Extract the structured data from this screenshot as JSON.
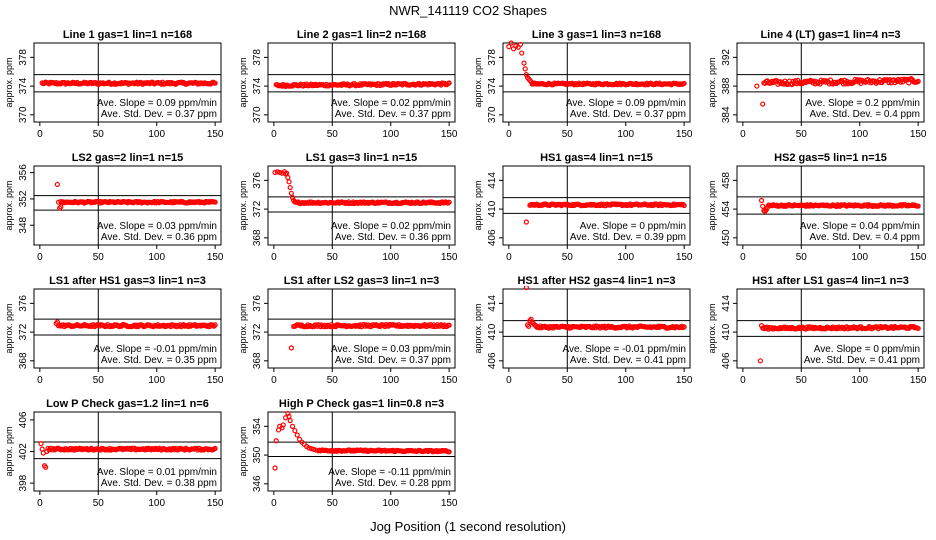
{
  "figure": {
    "title": "NWR_141119  CO2 Shapes",
    "xlabel": "Jog Position (1 second resolution)",
    "ylabel": "approx. ppm",
    "annotation_slope_prefix": "Ave. Slope = ",
    "annotation_slope_unit": " ppm/min",
    "annotation_std_prefix": "Ave. Std. Dev. = ",
    "annotation_std_unit": " ppm",
    "point_color": "#ff0000",
    "line_color": "#000000"
  },
  "chart_data": [
    {
      "type": "scatter",
      "title": "Line 1 gas=1 lin=1 n=168",
      "xlim": [
        -5,
        155
      ],
      "xticks": [
        0,
        50,
        100,
        150
      ],
      "ylim": [
        369,
        380
      ],
      "yticks": [
        370,
        374,
        378
      ],
      "hlines": [
        375.6,
        373.2
      ],
      "vline": 50,
      "slope": "0.09",
      "std": "0.37",
      "shape": {
        "base": 374.4,
        "start": 2,
        "end": 150,
        "noise": 0.15,
        "trend": 0.0,
        "points": []
      }
    },
    {
      "type": "scatter",
      "title": "Line 2 gas=1 lin=2 n=168",
      "xlim": [
        -5,
        155
      ],
      "xticks": [
        0,
        50,
        100,
        150
      ],
      "ylim": [
        369,
        380
      ],
      "yticks": [
        370,
        374,
        378
      ],
      "hlines": [
        375.6,
        373.2
      ],
      "vline": 50,
      "slope": "0.02",
      "std": "0.37",
      "shape": {
        "base": 374.2,
        "start": 2,
        "end": 150,
        "noise": 0.15,
        "trend": 0.2,
        "points": []
      }
    },
    {
      "type": "scatter",
      "title": "Line 3 gas=1 lin=3 n=168",
      "xlim": [
        -5,
        155
      ],
      "xticks": [
        0,
        50,
        100,
        150
      ],
      "ylim": [
        369,
        380
      ],
      "yticks": [
        370,
        374,
        378
      ],
      "hlines": [
        375.6,
        373.2
      ],
      "vline": 50,
      "slope": "0.09",
      "std": "0.37",
      "shape": {
        "base": 374.3,
        "start": 20,
        "end": 150,
        "noise": 0.12,
        "trend": 0.0,
        "points": [
          [
            0,
            379.5
          ],
          [
            2,
            380
          ],
          [
            4,
            379.2
          ],
          [
            6,
            379.6
          ],
          [
            8,
            379.4
          ],
          [
            10,
            379.8
          ],
          [
            11,
            378.6
          ],
          [
            13,
            377.2
          ],
          [
            14,
            376.4
          ],
          [
            15,
            375.6
          ],
          [
            16,
            375.2
          ],
          [
            17,
            375.0
          ],
          [
            18,
            374.8
          ],
          [
            19,
            374.6
          ]
        ]
      }
    },
    {
      "type": "scatter",
      "title": "Line 4 (LT) gas=1 lin=4 n=3",
      "xlim": [
        -5,
        155
      ],
      "xticks": [
        0,
        50,
        100,
        150
      ],
      "ylim": [
        383,
        394
      ],
      "yticks": [
        384,
        388,
        392
      ],
      "hlines": [
        389.6,
        387.2
      ],
      "vline": 50,
      "slope": "0.2",
      "std": "0.4",
      "shape": {
        "base": 388.6,
        "start": 18,
        "end": 150,
        "noise": 0.3,
        "trend": 0.3,
        "points": [
          [
            12,
            388.0
          ],
          [
            17,
            385.5
          ]
        ]
      }
    },
    {
      "type": "scatter",
      "title": "LS2 gas=2 lin=1 n=15",
      "xlim": [
        -5,
        155
      ],
      "xticks": [
        0,
        50,
        100,
        150
      ],
      "ylim": [
        345,
        357
      ],
      "yticks": [
        348,
        352,
        356
      ],
      "hlines": [
        352.5,
        350.3
      ],
      "vline": 50,
      "slope": "0.03",
      "std": "0.36",
      "shape": {
        "base": 351.5,
        "start": 18,
        "end": 150,
        "noise": 0.12,
        "trend": 0.0,
        "points": [
          [
            15,
            354.2
          ],
          [
            16,
            351.5
          ],
          [
            17,
            350.6
          ],
          [
            18,
            350.8
          ]
        ]
      }
    },
    {
      "type": "scatter",
      "title": "LS1 gas=3 lin=1 n=15",
      "xlim": [
        -5,
        155
      ],
      "xticks": [
        0,
        50,
        100,
        150
      ],
      "ylim": [
        367,
        378
      ],
      "yticks": [
        368,
        372,
        376
      ],
      "hlines": [
        373.7,
        371.6
      ],
      "vline": 50,
      "slope": "0.02",
      "std": "0.36",
      "shape": {
        "base": 372.9,
        "start": 18,
        "end": 150,
        "noise": 0.12,
        "trend": 0.0,
        "points": [
          [
            1,
            377.1
          ],
          [
            3,
            377.2
          ],
          [
            5,
            377.1
          ],
          [
            7,
            377.0
          ],
          [
            9,
            377.2
          ],
          [
            10,
            376.9
          ],
          [
            11,
            377.0
          ],
          [
            12,
            376.4
          ],
          [
            13,
            375.8
          ],
          [
            14,
            375.0
          ],
          [
            15,
            374.2
          ],
          [
            16,
            373.6
          ],
          [
            17,
            373.2
          ]
        ]
      }
    },
    {
      "type": "scatter",
      "title": "HS1 gas=4 lin=1 n=15",
      "xlim": [
        -5,
        155
      ],
      "xticks": [
        0,
        50,
        100,
        150
      ],
      "ylim": [
        405,
        416
      ],
      "yticks": [
        406,
        410,
        414
      ],
      "hlines": [
        411.6,
        409.4
      ],
      "vline": 50,
      "slope": "0",
      "std": "0.39",
      "shape": {
        "base": 410.6,
        "start": 18,
        "end": 150,
        "noise": 0.12,
        "trend": 0.0,
        "points": [
          [
            15,
            408.2
          ]
        ]
      }
    },
    {
      "type": "scatter",
      "title": "HS2 gas=5 lin=1 n=15",
      "xlim": [
        -5,
        155
      ],
      "xticks": [
        0,
        50,
        100,
        150
      ],
      "ylim": [
        449,
        460
      ],
      "yticks": [
        450,
        454,
        458
      ],
      "hlines": [
        455.7,
        453.3
      ],
      "vline": 50,
      "slope": "0.04",
      "std": "0.4",
      "shape": {
        "base": 454.5,
        "start": 22,
        "end": 150,
        "noise": 0.12,
        "trend": 0.0,
        "points": [
          [
            16,
            455.2
          ],
          [
            17,
            454.4
          ],
          [
            18,
            453.8
          ],
          [
            19,
            453.7
          ],
          [
            20,
            453.9
          ],
          [
            21,
            454.2
          ]
        ]
      }
    },
    {
      "type": "scatter",
      "title": "LS1 after HS1 gas=3 lin=1 n=3",
      "xlim": [
        -5,
        155
      ],
      "xticks": [
        0,
        50,
        100,
        150
      ],
      "ylim": [
        367,
        378
      ],
      "yticks": [
        368,
        372,
        376
      ],
      "hlines": [
        373.8,
        371.6
      ],
      "vline": 50,
      "slope": "-0.01",
      "std": "0.35",
      "shape": {
        "base": 372.9,
        "start": 16,
        "end": 150,
        "noise": 0.15,
        "trend": 0.0,
        "points": [
          [
            14,
            373.2
          ],
          [
            15,
            373.4
          ]
        ]
      }
    },
    {
      "type": "scatter",
      "title": "LS1 after LS2 gas=3 lin=1 n=3",
      "xlim": [
        -5,
        155
      ],
      "xticks": [
        0,
        50,
        100,
        150
      ],
      "ylim": [
        367,
        378
      ],
      "yticks": [
        368,
        372,
        376
      ],
      "hlines": [
        373.8,
        371.6
      ],
      "vline": 50,
      "slope": "0.03",
      "std": "0.37",
      "shape": {
        "base": 372.9,
        "start": 17,
        "end": 150,
        "noise": 0.15,
        "trend": 0.0,
        "points": [
          [
            15,
            369.8
          ]
        ]
      }
    },
    {
      "type": "scatter",
      "title": "HS1 after HS2 gas=4 lin=1 n=3",
      "xlim": [
        -5,
        155
      ],
      "xticks": [
        0,
        50,
        100,
        150
      ],
      "ylim": [
        405,
        416
      ],
      "yticks": [
        406,
        410,
        414
      ],
      "hlines": [
        411.6,
        409.4
      ],
      "vline": 50,
      "slope": "-0.01",
      "std": "0.41",
      "shape": {
        "base": 410.7,
        "start": 24,
        "end": 150,
        "noise": 0.15,
        "trend": 0.0,
        "points": [
          [
            15,
            416.2
          ],
          [
            16,
            411.0
          ],
          [
            17,
            410.8
          ],
          [
            18,
            411.6
          ],
          [
            19,
            411.8
          ],
          [
            20,
            411.4
          ],
          [
            21,
            411.2
          ],
          [
            22,
            411.0
          ],
          [
            23,
            410.9
          ]
        ]
      }
    },
    {
      "type": "scatter",
      "title": "HS1 after LS1 gas=4 lin=1 n=3",
      "xlim": [
        -5,
        155
      ],
      "xticks": [
        0,
        50,
        100,
        150
      ],
      "ylim": [
        405,
        416
      ],
      "yticks": [
        406,
        410,
        414
      ],
      "hlines": [
        411.6,
        409.4
      ],
      "vline": 50,
      "slope": "0",
      "std": "0.41",
      "shape": {
        "base": 410.6,
        "start": 17,
        "end": 150,
        "noise": 0.15,
        "trend": 0.1,
        "points": [
          [
            15,
            406.0
          ],
          [
            16,
            410.9
          ]
        ]
      }
    },
    {
      "type": "scatter",
      "title": "Low P Check gas=1.2 lin=1 n=6",
      "xlim": [
        -5,
        155
      ],
      "xticks": [
        0,
        50,
        100,
        150
      ],
      "ylim": [
        397,
        407
      ],
      "yticks": [
        398,
        402,
        406
      ],
      "hlines": [
        403.2,
        401.1
      ],
      "vline": 50,
      "slope": "0.01",
      "std": "0.38",
      "shape": {
        "base": 402.3,
        "start": 9,
        "end": 150,
        "noise": 0.12,
        "trend": 0.0,
        "points": [
          [
            1,
            403.0
          ],
          [
            2,
            402.3
          ],
          [
            3,
            401.8
          ],
          [
            4,
            400.2
          ],
          [
            5,
            400.0
          ],
          [
            6,
            402.0
          ],
          [
            7,
            402.4
          ],
          [
            8,
            402.2
          ]
        ]
      }
    },
    {
      "type": "scatter",
      "title": "High P Check gas=1 lin=0.8 n=3",
      "xlim": [
        -5,
        155
      ],
      "xticks": [
        0,
        50,
        100,
        150
      ],
      "ylim": [
        345,
        356
      ],
      "yticks": [
        346,
        350,
        354
      ],
      "hlines": [
        351.8,
        349.8
      ],
      "vline": 50,
      "slope": "-0.11",
      "std": "0.28",
      "shape": {
        "base": 350.6,
        "start": 38,
        "end": 150,
        "noise": 0.1,
        "trend": -0.1,
        "points": [
          [
            1,
            348.2
          ],
          [
            2,
            352.0
          ],
          [
            4,
            353.5
          ],
          [
            5,
            354.0
          ],
          [
            7,
            353.8
          ],
          [
            8,
            354.2
          ],
          [
            10,
            355.2
          ],
          [
            12,
            355.8
          ],
          [
            13,
            355.4
          ],
          [
            14,
            354.8
          ],
          [
            16,
            354.0
          ],
          [
            18,
            353.4
          ],
          [
            20,
            352.8
          ],
          [
            22,
            352.2
          ],
          [
            24,
            351.8
          ],
          [
            26,
            351.5
          ],
          [
            28,
            351.2
          ],
          [
            30,
            351.0
          ],
          [
            32,
            350.9
          ],
          [
            34,
            350.8
          ],
          [
            36,
            350.7
          ]
        ]
      }
    }
  ]
}
